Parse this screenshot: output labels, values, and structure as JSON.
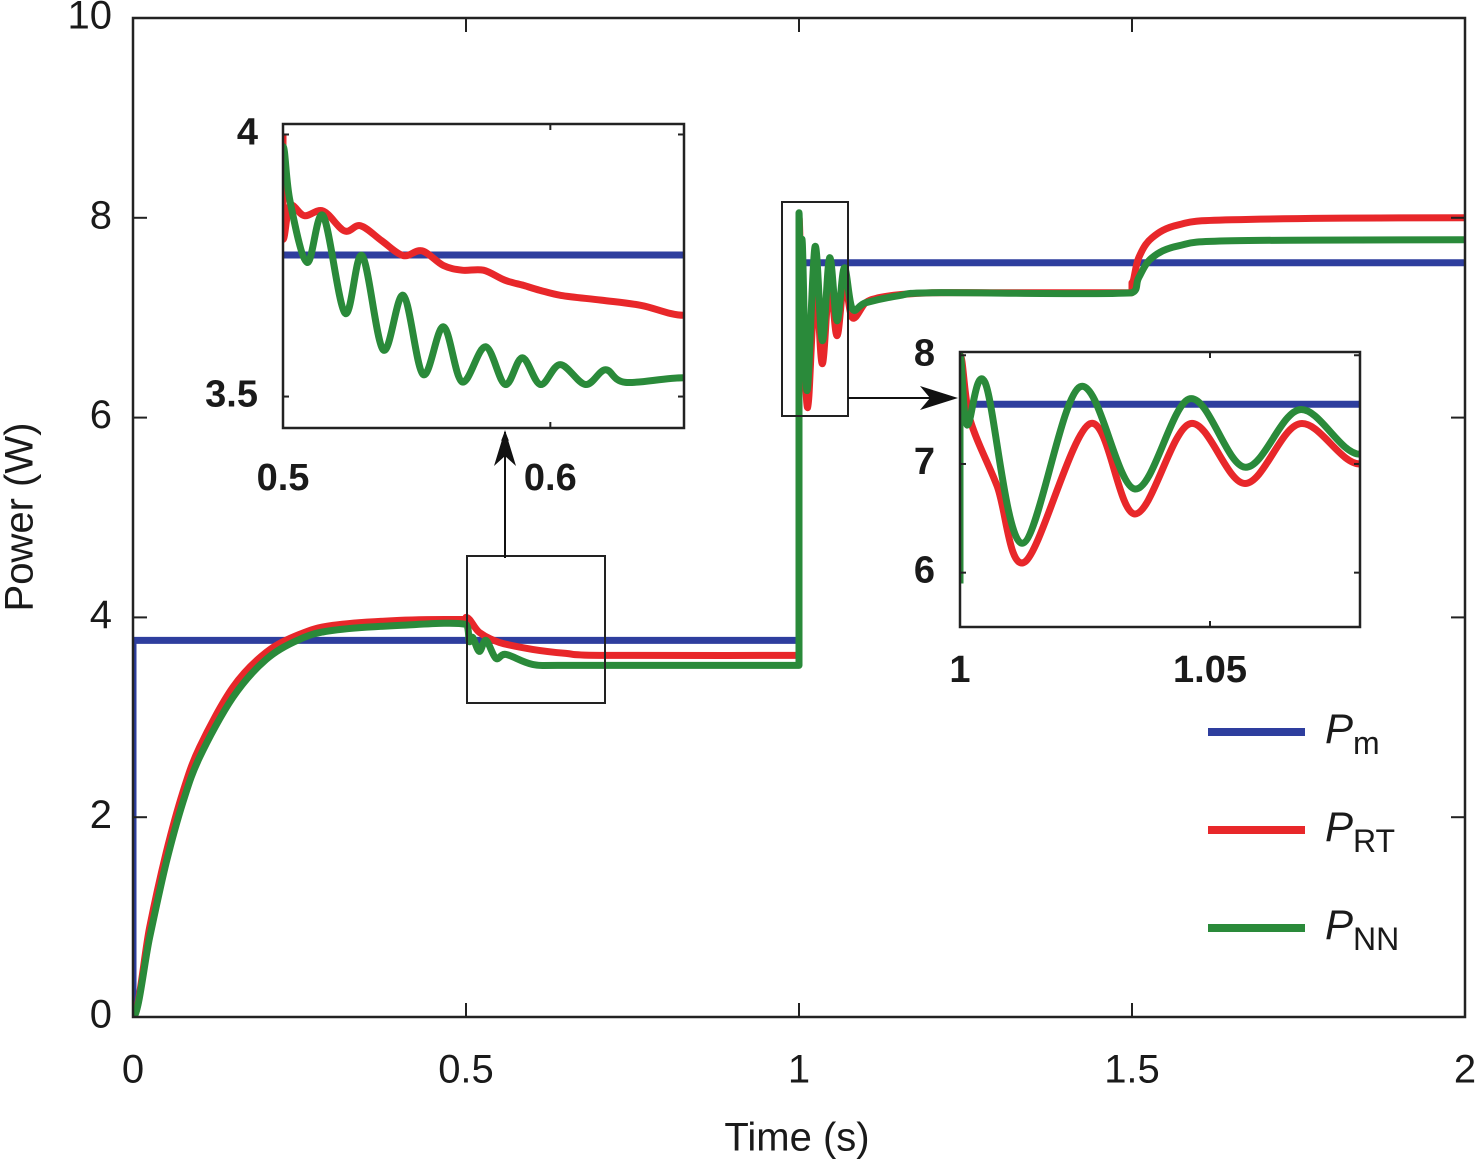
{
  "chart_data": [
    {
      "type": "line",
      "xlabel": "Time (s)",
      "ylabel": "Power (W)",
      "xlim": [
        0,
        2
      ],
      "ylim": [
        0,
        10
      ],
      "xticks": [
        0,
        0.5,
        1,
        1.5,
        2
      ],
      "yticks": [
        0,
        2,
        4,
        6,
        8,
        10
      ],
      "legend": "lower right",
      "series": [
        {
          "name": "P",
          "subscript": "m",
          "color": "#2e3e9e",
          "x": [
            0,
            0,
            1,
            1,
            2
          ],
          "values": [
            0,
            3.77,
            3.77,
            7.55,
            7.55
          ]
        },
        {
          "name": "P",
          "subscript": "RT",
          "color": "#e8272a",
          "x": [
            0,
            0.025,
            0.05,
            0.075,
            0.1,
            0.15,
            0.2,
            0.25,
            0.3,
            0.4,
            0.5,
            0.5,
            0.52,
            0.55,
            0.6,
            0.65,
            0.7,
            1,
            1,
            1.003,
            1.007,
            1.013,
            1.02,
            1.026,
            1.035,
            1.046,
            1.057,
            1.068,
            1.08,
            1.1,
            1.12,
            1.15,
            1.2,
            1.3,
            1.5,
            1.5,
            1.51,
            1.53,
            1.57,
            1.65,
            2
          ],
          "values": [
            0,
            0.9,
            1.65,
            2.25,
            2.7,
            3.3,
            3.65,
            3.83,
            3.92,
            3.97,
            3.98,
            4.0,
            3.85,
            3.75,
            3.68,
            3.64,
            3.62,
            3.62,
            8.0,
            7.4,
            6.8,
            6.1,
            6.9,
            7.37,
            6.54,
            7.37,
            6.82,
            7.37,
            7.0,
            7.15,
            7.2,
            7.23,
            7.25,
            7.25,
            7.25,
            7.35,
            7.6,
            7.8,
            7.93,
            7.98,
            8.0
          ]
        },
        {
          "name": "P",
          "subscript": "NN",
          "color": "#2a8a3a",
          "x": [
            0,
            0.025,
            0.05,
            0.075,
            0.1,
            0.15,
            0.2,
            0.25,
            0.3,
            0.4,
            0.5,
            0.505,
            0.51,
            0.52,
            0.53,
            0.545,
            0.56,
            0.6,
            0.65,
            1,
            1,
            1.002,
            1.005,
            1.012,
            1.024,
            1.035,
            1.046,
            1.057,
            1.068,
            1.08,
            1.1,
            1.15,
            1.2,
            1.5,
            1.51,
            1.53,
            1.57,
            1.65,
            2
          ],
          "values": [
            0,
            0.8,
            1.55,
            2.15,
            2.6,
            3.2,
            3.58,
            3.78,
            3.87,
            3.92,
            3.93,
            3.76,
            3.8,
            3.66,
            3.77,
            3.59,
            3.63,
            3.53,
            3.52,
            3.52,
            8.05,
            7.4,
            7.75,
            6.27,
            7.71,
            6.77,
            7.6,
            6.97,
            7.5,
            7.09,
            7.15,
            7.22,
            7.25,
            7.25,
            7.4,
            7.6,
            7.72,
            7.77,
            7.78
          ]
        }
      ]
    },
    {
      "type": "line",
      "xlim": [
        0.5,
        0.65
      ],
      "ylim": [
        3.44,
        4.02
      ],
      "xticks": [
        0.5,
        0.6
      ],
      "yticks": [
        3.5,
        4
      ],
      "series": [
        {
          "color": "#2e3e9e",
          "x": [
            0.5,
            0.65
          ],
          "values": [
            3.77,
            3.77
          ]
        },
        {
          "color": "#e8272a",
          "x": [
            0.5,
            0.5,
            0.5026,
            0.508,
            0.515,
            0.523,
            0.529,
            0.537,
            0.545,
            0.552,
            0.56,
            0.567,
            0.575,
            0.583,
            0.59,
            0.596,
            0.604,
            0.619,
            0.634,
            0.65
          ],
          "values": [
            4.0,
            3.8,
            3.864,
            3.845,
            3.854,
            3.816,
            3.826,
            3.797,
            3.769,
            3.778,
            3.75,
            3.741,
            3.741,
            3.722,
            3.712,
            3.703,
            3.693,
            3.684,
            3.674,
            3.655
          ]
        },
        {
          "color": "#2a8a3a",
          "x": [
            0.5,
            0.5026,
            0.509,
            0.515,
            0.5232,
            0.5296,
            0.5375,
            0.545,
            0.5524,
            0.56,
            0.567,
            0.5757,
            0.5831,
            0.5895,
            0.5963,
            0.6037,
            0.6131,
            0.6206,
            0.6281,
            0.65
          ],
          "values": [
            3.977,
            3.873,
            3.756,
            3.845,
            3.659,
            3.769,
            3.589,
            3.693,
            3.542,
            3.633,
            3.528,
            3.595,
            3.523,
            3.574,
            3.523,
            3.561,
            3.523,
            3.551,
            3.527,
            3.536
          ]
        }
      ]
    },
    {
      "type": "line",
      "xlim": [
        1,
        1.08
      ],
      "ylim": [
        5.5,
        8.03
      ],
      "xticks": [
        1,
        1.05
      ],
      "yticks": [
        6,
        7,
        8
      ],
      "series": [
        {
          "color": "#2e3e9e",
          "x": [
            1,
            1,
            1.08
          ],
          "values": [
            5.9,
            7.55,
            7.55
          ]
        },
        {
          "color": "#e8272a",
          "x": [
            1,
            1,
            1.002,
            1.0074,
            1.013,
            1.026,
            1.035,
            1.046,
            1.057,
            1.068,
            1.08
          ],
          "values": [
            5.9,
            8.0,
            7.41,
            6.8,
            6.1,
            7.37,
            6.54,
            7.37,
            6.82,
            7.37,
            7.0
          ]
        },
        {
          "color": "#2a8a3a",
          "x": [
            1,
            1,
            1.0014,
            1.005,
            1.0124,
            1.024,
            1.035,
            1.046,
            1.057,
            1.068,
            1.08
          ],
          "values": [
            5.9,
            8.0,
            7.36,
            7.75,
            6.27,
            7.71,
            6.77,
            7.6,
            6.97,
            7.5,
            7.09
          ]
        }
      ]
    }
  ]
}
